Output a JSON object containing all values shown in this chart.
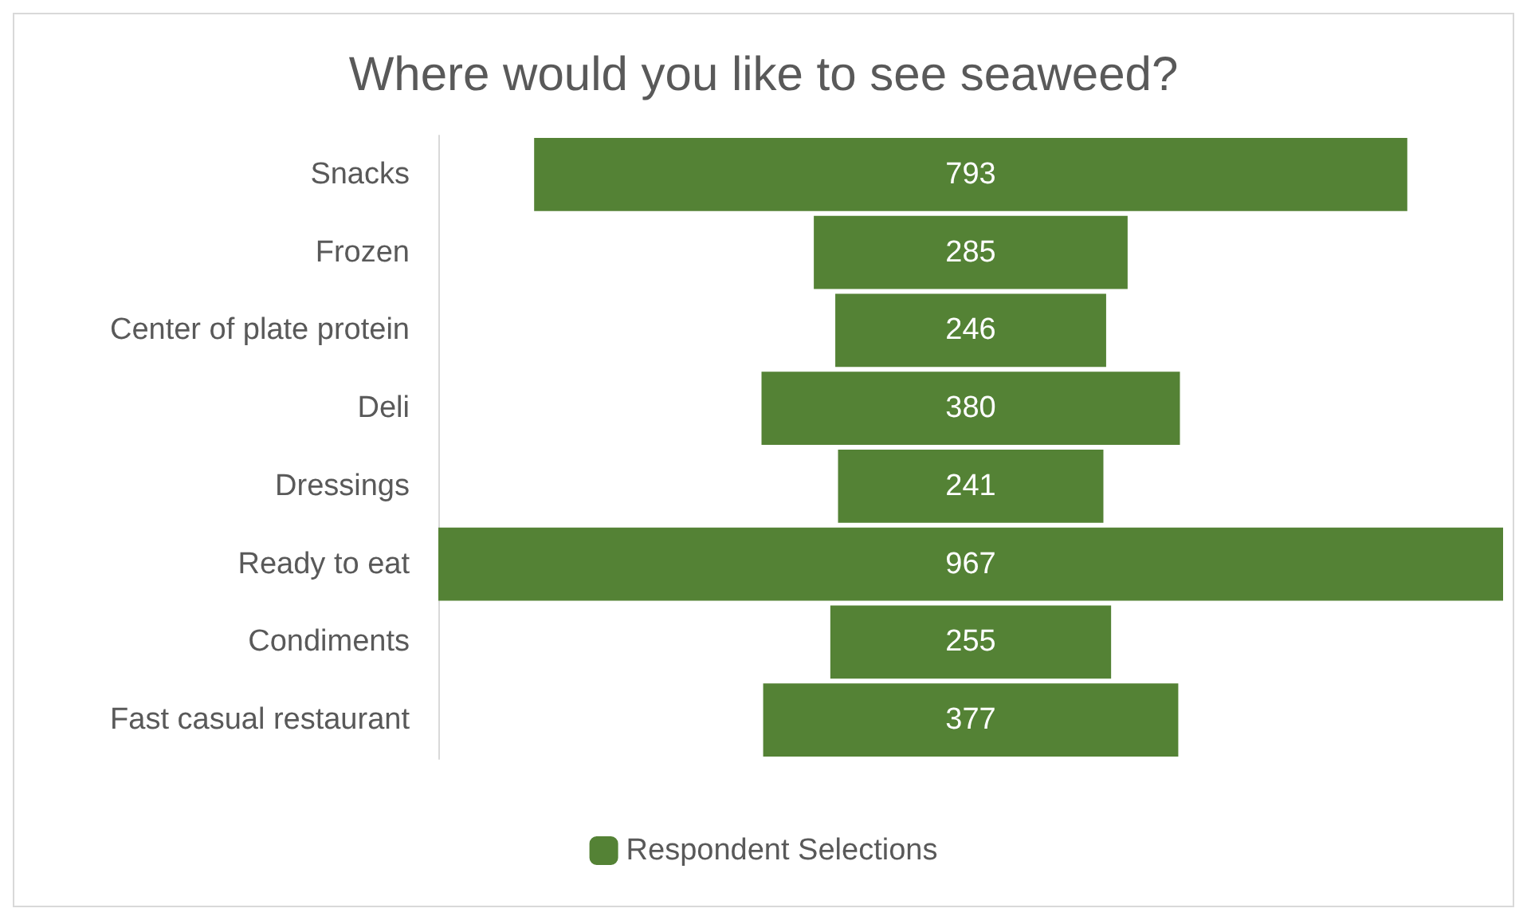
{
  "chart_data": {
    "type": "other",
    "title": "Where would you like to see seaweed?",
    "categories": [
      "Snacks",
      "Frozen",
      "Center of plate protein",
      "Deli",
      "Dressings",
      "Ready to eat",
      "Condiments",
      "Fast casual restaurant"
    ],
    "series": [
      {
        "name": "Respondent Selections",
        "color": "#548235",
        "values": [
          793,
          285,
          246,
          380,
          241,
          967,
          255,
          377
        ]
      }
    ],
    "data_labels": true,
    "legend": "bottom"
  }
}
